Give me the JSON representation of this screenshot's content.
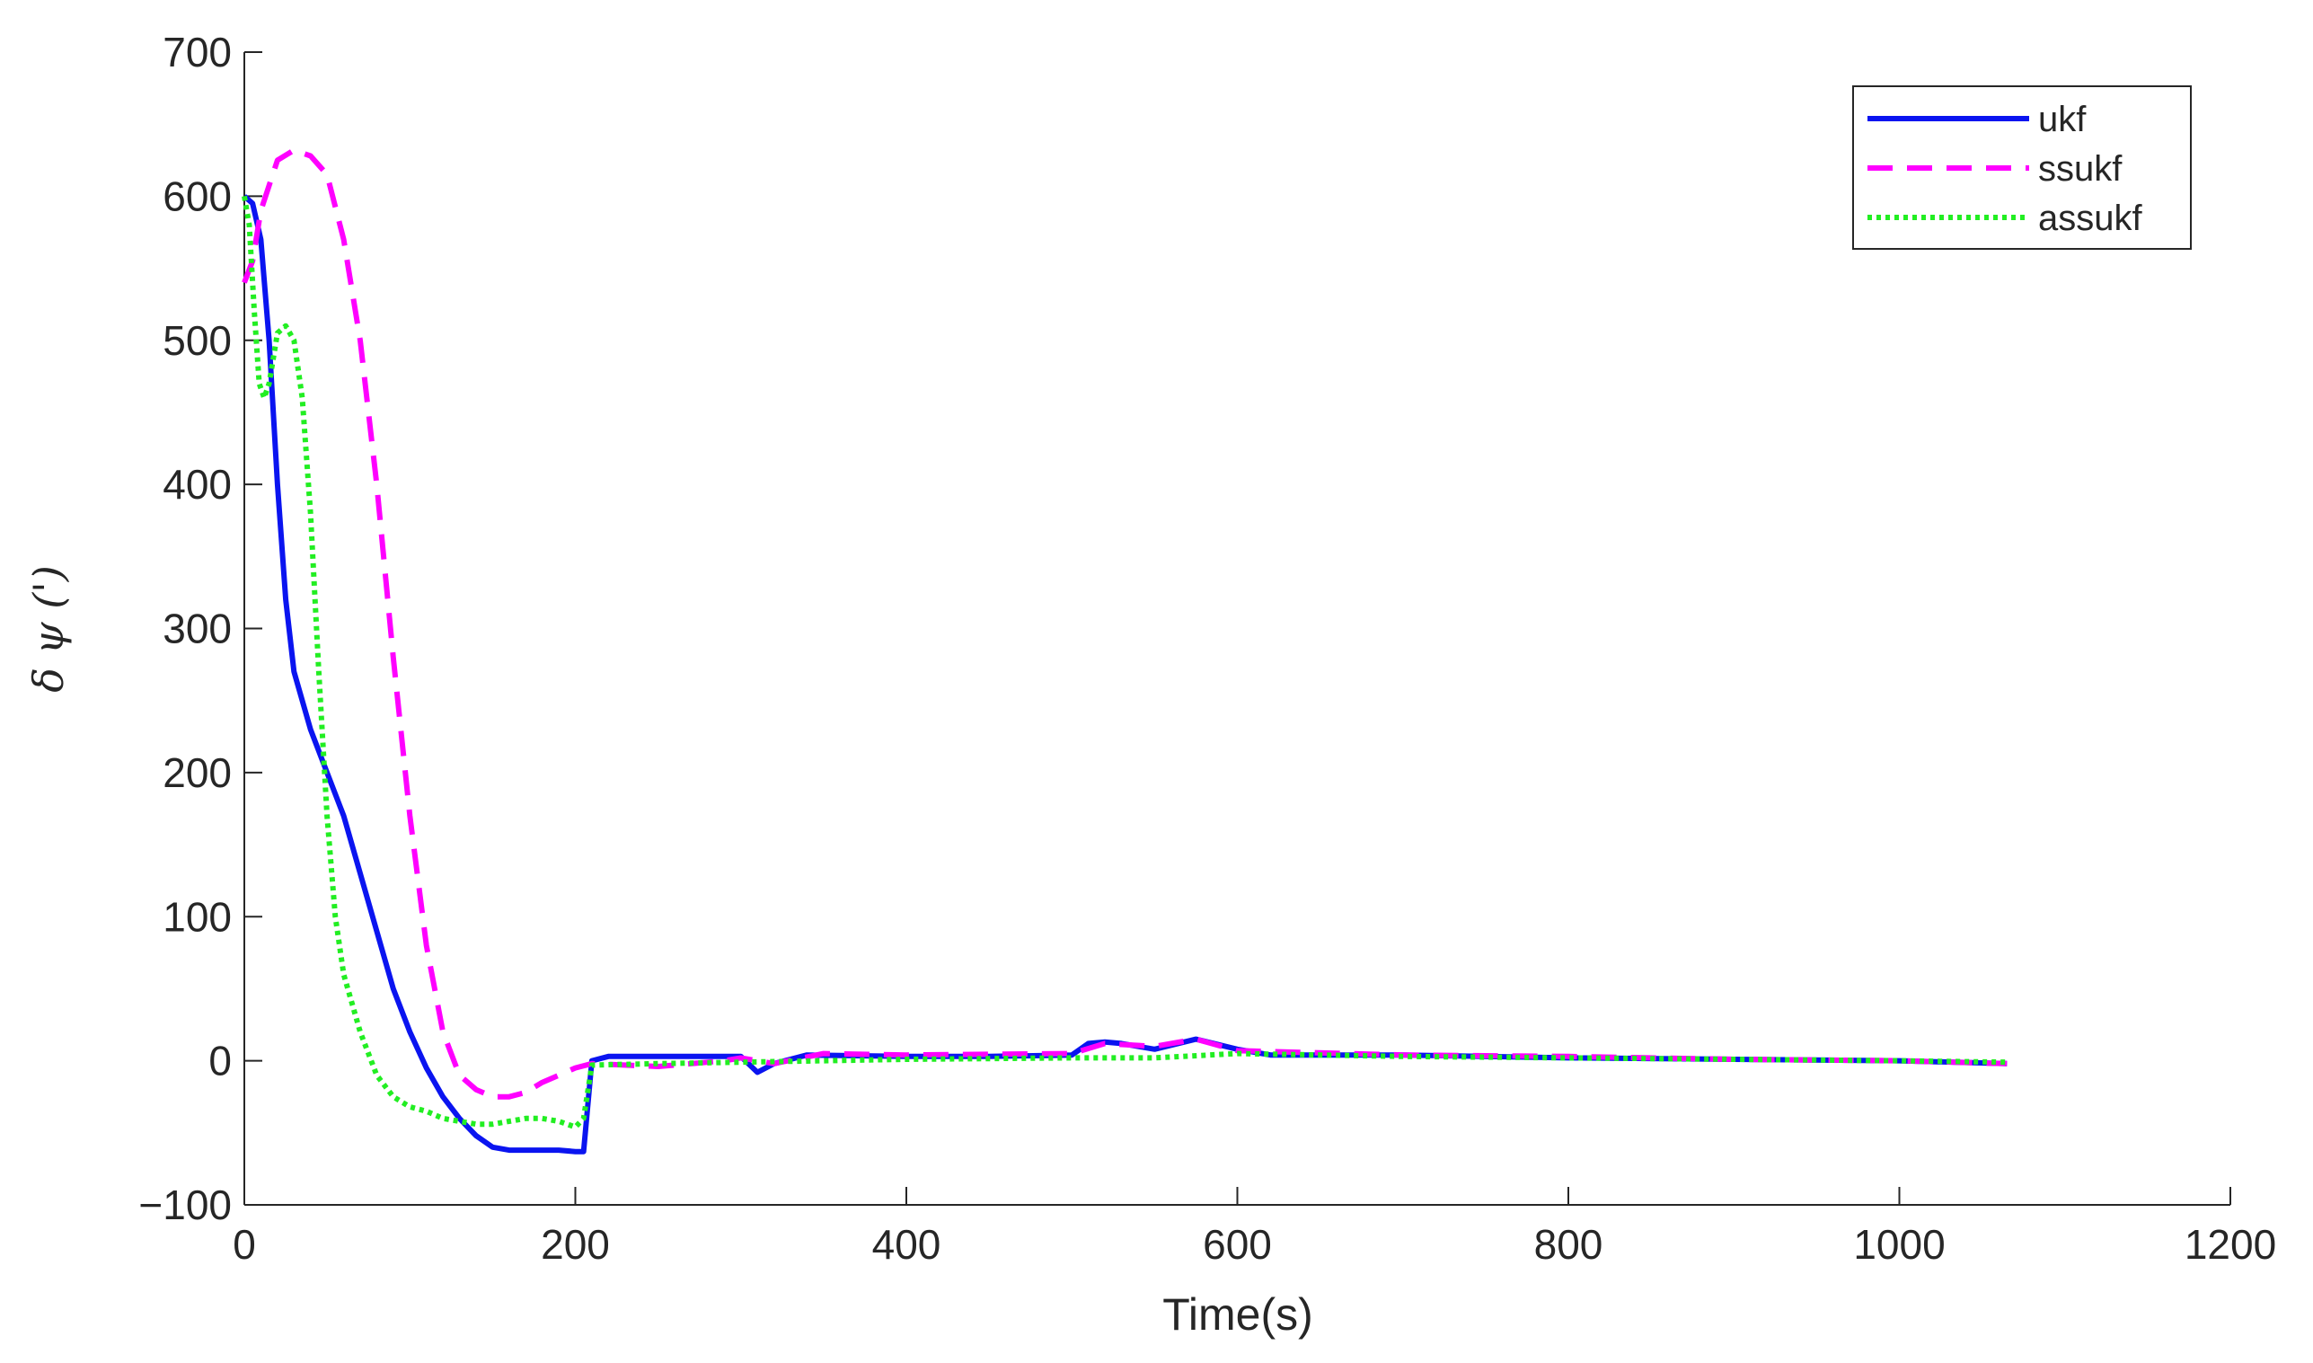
{
  "chart_data": {
    "type": "line",
    "xlabel": "Time(s)",
    "ylabel": "δ ψ (')",
    "xlim": [
      0,
      1200
    ],
    "ylim": [
      -100,
      700
    ],
    "xticks": [
      0,
      200,
      400,
      600,
      800,
      1000,
      1200
    ],
    "yticks": [
      {
        "value": -100,
        "label": "−100"
      },
      0,
      100,
      200,
      300,
      400,
      500,
      600,
      700
    ],
    "grid": false,
    "legend": "top-right",
    "series": [
      {
        "name": "ukf",
        "color": "#0a14f0",
        "style": "solid",
        "x": [
          0,
          5,
          10,
          15,
          20,
          25,
          30,
          40,
          50,
          60,
          70,
          80,
          90,
          100,
          110,
          120,
          130,
          140,
          150,
          160,
          170,
          180,
          190,
          200,
          205,
          210,
          220,
          250,
          290,
          300,
          310,
          320,
          340,
          400,
          450,
          500,
          510,
          520,
          530,
          550,
          575,
          600,
          620,
          700,
          800,
          900,
          1000,
          1065
        ],
        "values": [
          600,
          595,
          570,
          500,
          400,
          320,
          270,
          230,
          200,
          170,
          130,
          90,
          50,
          20,
          -5,
          -25,
          -40,
          -52,
          -60,
          -62,
          -62,
          -62,
          -62,
          -63,
          -63,
          0,
          3,
          3,
          3,
          3,
          -8,
          -2,
          4,
          3,
          3,
          4,
          12,
          13,
          12,
          8,
          15,
          8,
          4,
          4,
          2,
          1,
          0,
          -2
        ]
      },
      {
        "name": "ssukf",
        "color": "#ff00ff",
        "style": "dashed",
        "x": [
          0,
          5,
          10,
          20,
          30,
          40,
          50,
          60,
          70,
          80,
          90,
          100,
          110,
          120,
          130,
          140,
          150,
          160,
          170,
          180,
          190,
          200,
          210,
          250,
          290,
          300,
          320,
          350,
          400,
          500,
          520,
          550,
          575,
          600,
          700,
          800,
          900,
          1000,
          1065
        ],
        "values": [
          540,
          555,
          590,
          625,
          632,
          628,
          615,
          570,
          500,
          400,
          280,
          170,
          80,
          20,
          -10,
          -20,
          -25,
          -25,
          -22,
          -15,
          -10,
          -5,
          -2,
          -4,
          0,
          2,
          -2,
          5,
          4,
          5,
          12,
          10,
          15,
          7,
          4,
          3,
          1,
          0,
          -2
        ]
      },
      {
        "name": "assukf",
        "color": "#22ee22",
        "style": "dotted",
        "x": [
          0,
          3,
          6,
          9,
          12,
          15,
          20,
          25,
          30,
          35,
          40,
          45,
          50,
          55,
          60,
          70,
          80,
          90,
          100,
          110,
          120,
          130,
          140,
          150,
          160,
          170,
          180,
          190,
          200,
          205,
          210,
          250,
          300,
          400,
          500,
          550,
          600,
          700,
          800,
          900,
          1000,
          1065
        ],
        "values": [
          600,
          580,
          520,
          470,
          460,
          470,
          505,
          510,
          500,
          460,
          380,
          270,
          170,
          100,
          60,
          20,
          -10,
          -25,
          -32,
          -35,
          -40,
          -42,
          -44,
          -44,
          -42,
          -40,
          -40,
          -42,
          -46,
          -40,
          -3,
          -2,
          -1,
          1,
          2,
          2,
          5,
          3,
          2,
          1,
          0,
          -1
        ]
      }
    ]
  }
}
